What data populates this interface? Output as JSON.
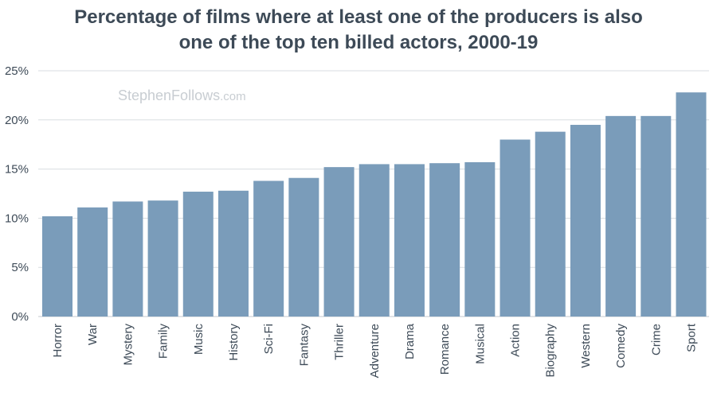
{
  "chart_data": {
    "type": "bar",
    "title_lines": [
      "Percentage of films where at least one of the producers is also",
      "one of the top ten billed actors, 2000-19"
    ],
    "categories": [
      "Horror",
      "War",
      "Mystery",
      "Family",
      "Music",
      "History",
      "Sci-Fi",
      "Fantasy",
      "Thriller",
      "Adventure",
      "Drama",
      "Romance",
      "Musical",
      "Action",
      "Biography",
      "Western",
      "Comedy",
      "Crime",
      "Sport"
    ],
    "values": [
      10.2,
      11.1,
      11.7,
      11.8,
      12.7,
      12.8,
      13.8,
      14.1,
      15.2,
      15.5,
      15.5,
      15.6,
      15.7,
      18.0,
      18.8,
      19.5,
      20.4,
      20.4,
      22.8
    ],
    "ylim": [
      0,
      25
    ],
    "yticks": [
      "0%",
      "5%",
      "10%",
      "15%",
      "20%",
      "25%"
    ],
    "ytick_values": [
      0,
      5,
      10,
      15,
      20,
      25
    ],
    "grid": true,
    "bar_color": "#7a9cba",
    "grid_color": "#d9dde1",
    "text_color": "#3d4a57"
  },
  "watermark": {
    "main": "StephenFollows",
    "suffix": ".com"
  }
}
